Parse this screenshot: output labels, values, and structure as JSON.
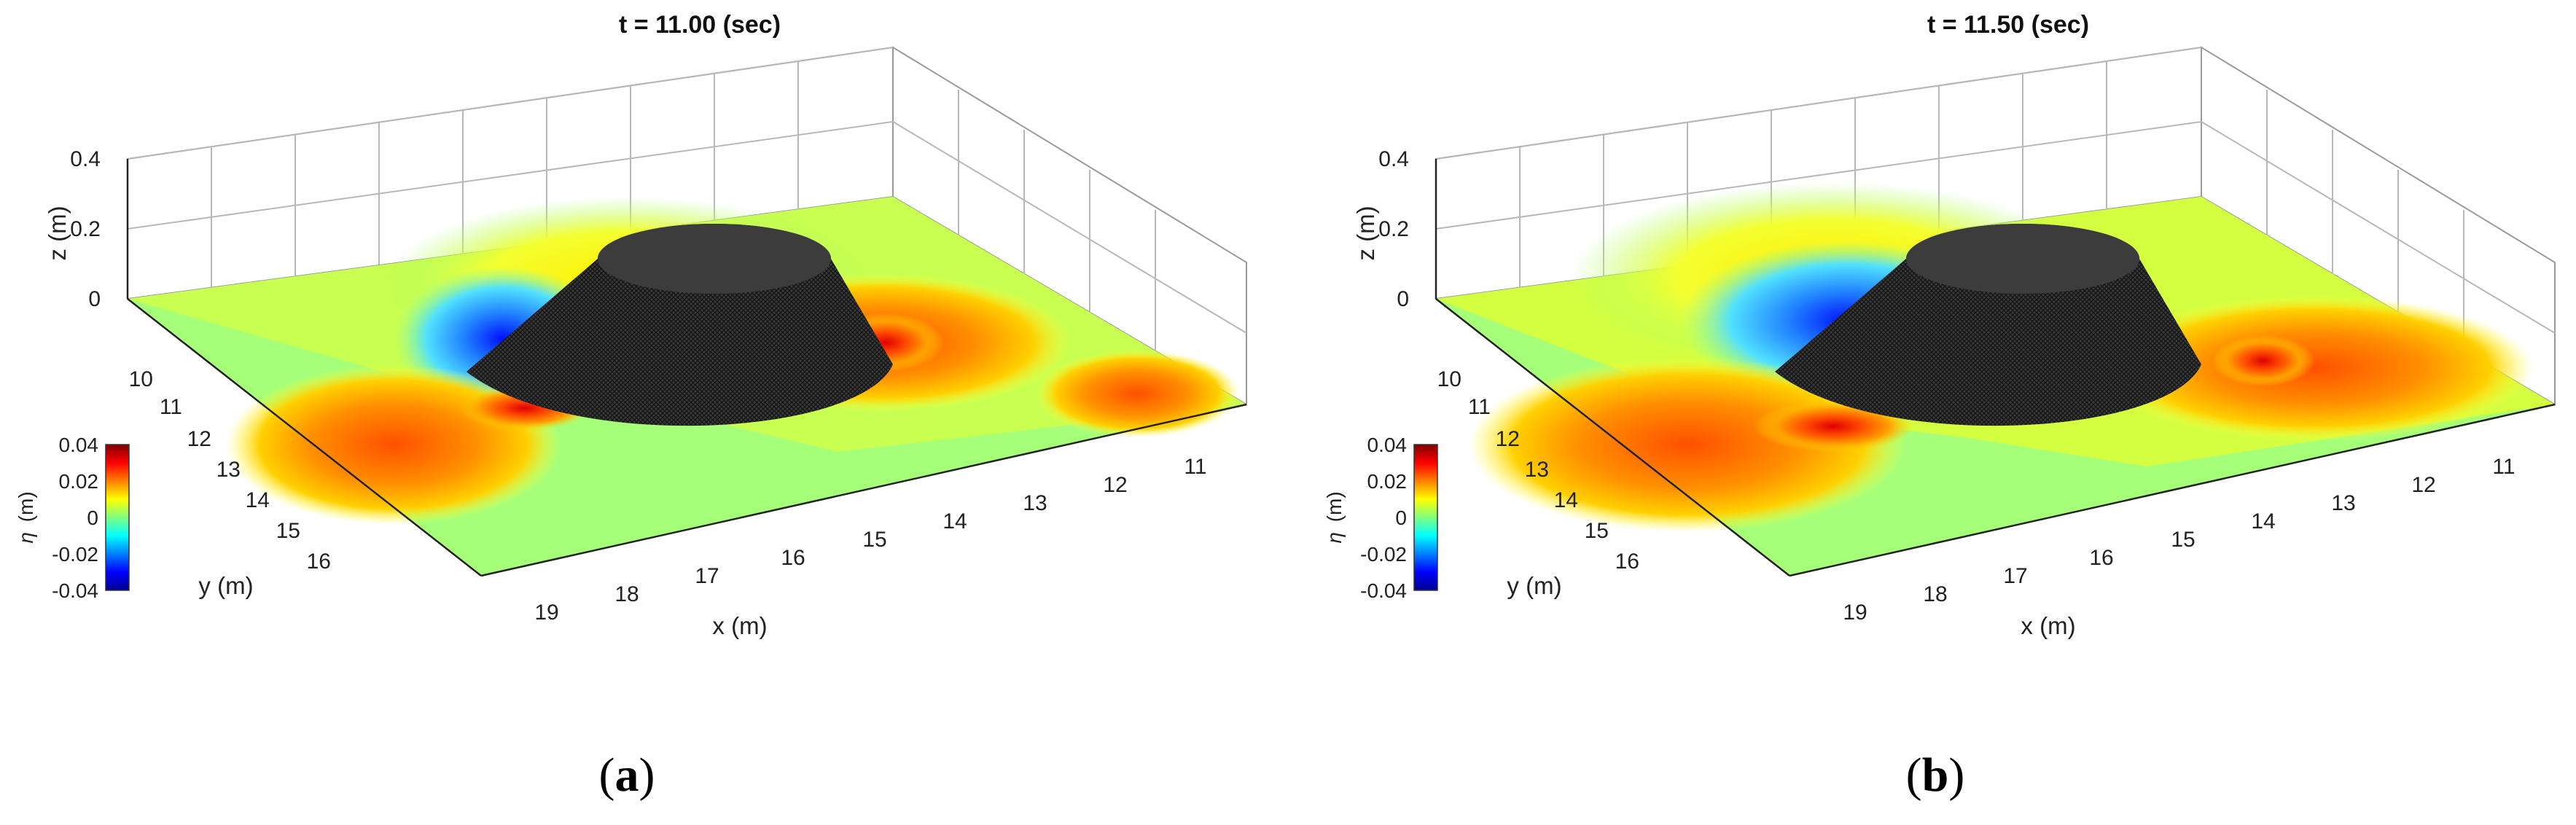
{
  "chart_data": [
    {
      "type": "surface3d",
      "panel": "(a)",
      "title": "t = 11.00 (sec)",
      "xlabel": "x (m)",
      "ylabel": "y (m)",
      "zlabel": "z (m)",
      "x_ticks": [
        "19",
        "18",
        "17",
        "16",
        "15",
        "14",
        "13",
        "12",
        "11"
      ],
      "y_ticks": [
        "10",
        "11",
        "12",
        "13",
        "14",
        "15",
        "16"
      ],
      "z_ticks": [
        "0.4",
        "0.2",
        "0"
      ],
      "colorbar": {
        "label": "η",
        "unit": "(m)",
        "ticks": [
          "0.04",
          "0.02",
          "0",
          "-0.02",
          "-0.04"
        ],
        "range": [
          -0.04,
          0.04
        ],
        "colormap": "jet"
      },
      "grid": true,
      "caption_letter": "a"
    },
    {
      "type": "surface3d",
      "panel": "(b)",
      "title": "t = 11.50 (sec)",
      "xlabel": "x (m)",
      "ylabel": "y (m)",
      "zlabel": "z (m)",
      "x_ticks": [
        "19",
        "18",
        "17",
        "16",
        "15",
        "14",
        "13",
        "12",
        "11"
      ],
      "y_ticks": [
        "10",
        "11",
        "12",
        "13",
        "14",
        "15",
        "16"
      ],
      "z_ticks": [
        "0.4",
        "0.2",
        "0"
      ],
      "colorbar": {
        "label": "η",
        "unit": "(m)",
        "ticks": [
          "0.04",
          "0.02",
          "0",
          "-0.02",
          "-0.04"
        ],
        "range": [
          -0.04,
          0.04
        ],
        "colormap": "jet"
      },
      "grid": true,
      "caption_letter": "b"
    }
  ]
}
